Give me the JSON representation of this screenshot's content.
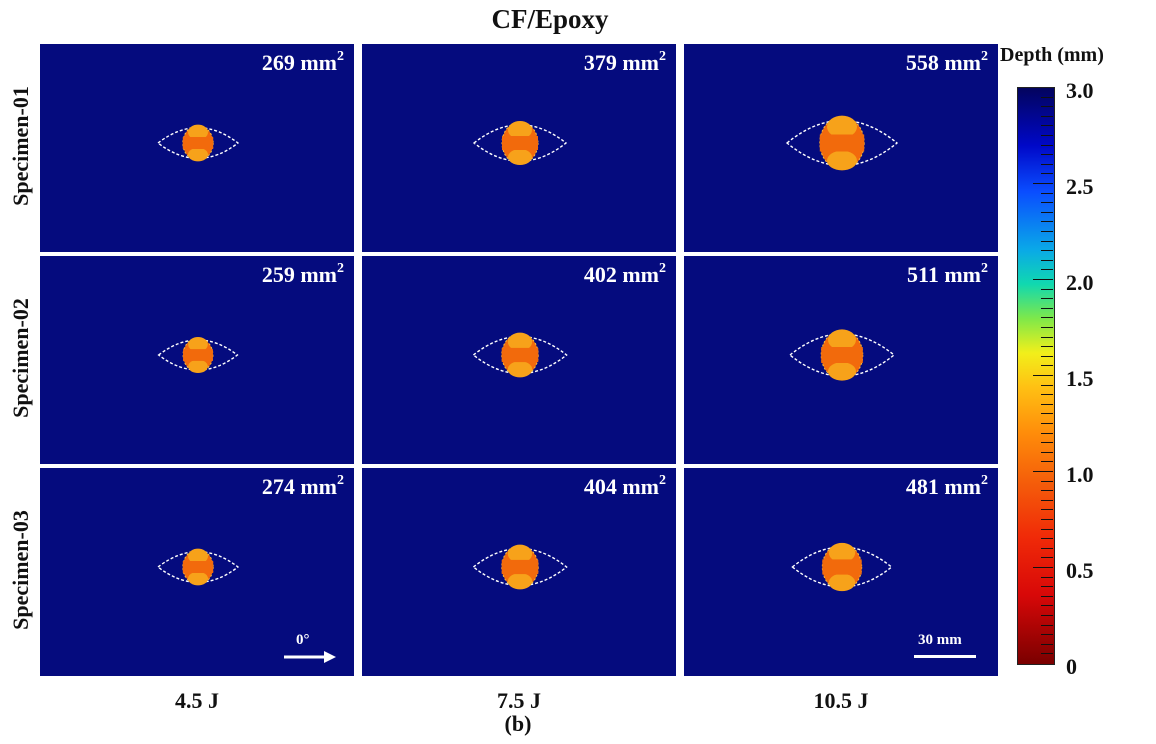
{
  "title": "CF/Epoxy",
  "row_labels": [
    "Specimen-01",
    "Specimen-02",
    "Specimen-03"
  ],
  "col_labels": [
    "4.5 J",
    "7.5 J",
    "10.5 J"
  ],
  "sublabel": "(b)",
  "panels": [
    {
      "area": "269 mm",
      "sup": "2",
      "size": 0.8
    },
    {
      "area": "379 mm",
      "sup": "2",
      "size": 1.0
    },
    {
      "area": "558 mm",
      "sup": "2",
      "size": 1.3
    },
    {
      "area": "259 mm",
      "sup": "2",
      "size": 0.78
    },
    {
      "area": "402 mm",
      "sup": "2",
      "size": 1.02
    },
    {
      "area": "511 mm",
      "sup": "2",
      "size": 1.2
    },
    {
      "area": "274 mm",
      "sup": "2",
      "size": 0.8
    },
    {
      "area": "404 mm",
      "sup": "2",
      "size": 1.02
    },
    {
      "area": "481 mm",
      "sup": "2",
      "size": 1.12
    }
  ],
  "colorbar": {
    "title": "Depth (mm)",
    "labels": [
      "3.0",
      "2.5",
      "2.0",
      "1.5",
      "1.0",
      "0.5",
      "0"
    ],
    "min": 0,
    "max": 3.0
  },
  "direction_label": "0°",
  "scale_label": "30 mm",
  "colors": {
    "background": "#050b7e",
    "damage": "#f26a0c",
    "damage_light": "#f7a21a",
    "outline": "#ffffff"
  }
}
